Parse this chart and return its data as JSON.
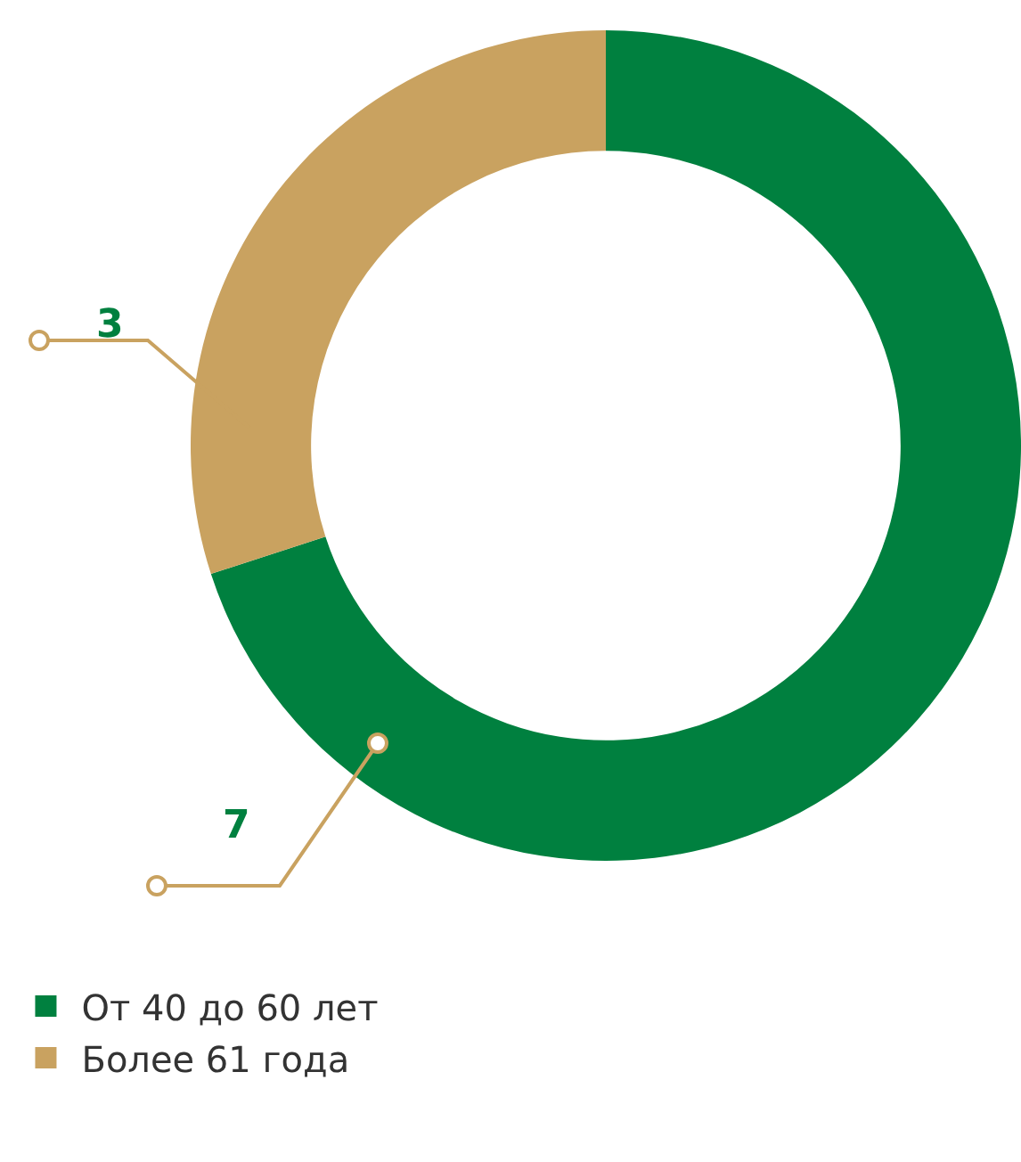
{
  "chart_data": {
    "type": "donut",
    "categories": [
      "От 40 до 60 лет",
      "Более 61 года"
    ],
    "values": [
      7,
      3
    ],
    "colors": [
      "#00803f",
      "#c9a260"
    ],
    "data_labels": true,
    "legend": "bottom left"
  }
}
